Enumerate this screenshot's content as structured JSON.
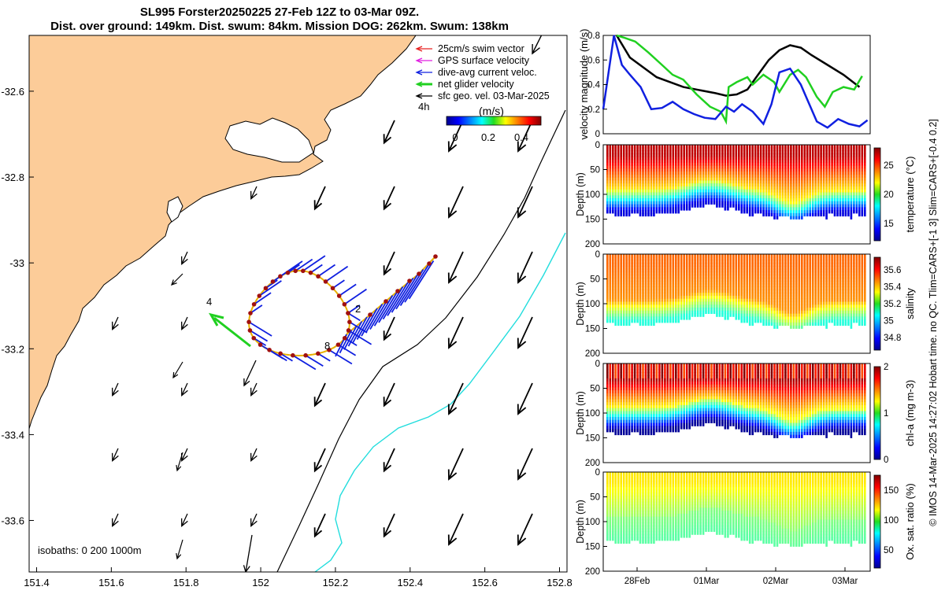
{
  "title": {
    "line1": "SL995 Forster20250225 27-Feb 12Z to 03-Mar 09Z.",
    "line2": "Dist. over ground: 149km. Dist. swum: 84km. Mission DOG: 262km. Swum: 138km"
  },
  "legend": {
    "items": [
      {
        "label": "25cm/s swim vector",
        "color": "#e82020"
      },
      {
        "label": "GPS surface velocity",
        "color": "#e020e0"
      },
      {
        "label": "dive-avg current veloc.",
        "color": "#1020e0"
      },
      {
        "label": "net glider velocity",
        "color": "#20d020"
      },
      {
        "label": "sfc geo. vel. 03-Mar-2025",
        "color": "#000000"
      }
    ],
    "time_label": "4h",
    "colorbar_unit": "(m/s)",
    "colorbar_ticks": [
      "0",
      "0.2",
      "0.4"
    ]
  },
  "isobaths_label": "isobaths: 0   200  1000m",
  "day_labels": [
    "2",
    "4",
    "8"
  ],
  "side_note": "© IMOS 14-Mar-2025 14:27:02 Hobart time. no QC. Tlim=CARS+[-1 3] Slim=CARS+[-0.4 0.2]",
  "colors": {
    "land": "#fccc99",
    "isobath_200": "#000000",
    "isobath_1000": "#20e0e0",
    "track": "#e8b000",
    "profile_marker": "#a01010"
  },
  "chart_data": [
    {
      "type": "scatter",
      "name": "map",
      "xlim": [
        151.38,
        152.82
      ],
      "ylim": [
        -33.72,
        -32.47
      ],
      "xticks": [
        "151.4",
        "151.6",
        "151.8",
        "152",
        "152.2",
        "152.4",
        "152.6",
        "152.8"
      ],
      "yticks": [
        "-32.6",
        "-32.8",
        "-33",
        "-33.2",
        "-33.4",
        "-33.6"
      ]
    },
    {
      "type": "line",
      "name": "velocity",
      "ylabel": "velocity magnitude (m/s)",
      "ylim": [
        0,
        0.8
      ],
      "yticks": [
        "0",
        "0.2",
        "0.4",
        "0.6",
        "0.8"
      ],
      "xlim": [
        0,
        1
      ],
      "series": [
        {
          "name": "black",
          "color": "#000000",
          "x": [
            0.05,
            0.1,
            0.2,
            0.3,
            0.42,
            0.46,
            0.5,
            0.54,
            0.58,
            0.62,
            0.66,
            0.7,
            0.74,
            0.78,
            0.84,
            0.9,
            0.96
          ],
          "y": [
            0.8,
            0.62,
            0.46,
            0.38,
            0.33,
            0.31,
            0.32,
            0.36,
            0.48,
            0.6,
            0.68,
            0.72,
            0.7,
            0.64,
            0.56,
            0.48,
            0.38
          ]
        },
        {
          "name": "green",
          "color": "#20d020",
          "x": [
            0.05,
            0.08,
            0.12,
            0.17,
            0.22,
            0.26,
            0.3,
            0.35,
            0.4,
            0.44,
            0.46,
            0.47,
            0.5,
            0.54,
            0.56,
            0.6,
            0.64,
            0.66,
            0.7,
            0.73,
            0.76,
            0.8,
            0.83,
            0.86,
            0.9,
            0.94,
            0.97
          ],
          "y": [
            0.8,
            0.78,
            0.75,
            0.66,
            0.56,
            0.48,
            0.44,
            0.32,
            0.22,
            0.18,
            0.1,
            0.38,
            0.42,
            0.46,
            0.4,
            0.48,
            0.42,
            0.34,
            0.48,
            0.52,
            0.46,
            0.3,
            0.22,
            0.34,
            0.38,
            0.36,
            0.47
          ]
        },
        {
          "name": "blue",
          "color": "#1020e0",
          "x": [
            0.0,
            0.04,
            0.07,
            0.1,
            0.14,
            0.18,
            0.22,
            0.26,
            0.3,
            0.34,
            0.38,
            0.42,
            0.46,
            0.49,
            0.52,
            0.56,
            0.6,
            0.63,
            0.66,
            0.7,
            0.74,
            0.77,
            0.8,
            0.84,
            0.88,
            0.92,
            0.96,
            0.99
          ],
          "y": [
            0.2,
            0.8,
            0.56,
            0.48,
            0.38,
            0.2,
            0.21,
            0.26,
            0.2,
            0.16,
            0.13,
            0.12,
            0.22,
            0.18,
            0.24,
            0.18,
            0.08,
            0.24,
            0.5,
            0.53,
            0.4,
            0.25,
            0.1,
            0.05,
            0.12,
            0.08,
            0.06,
            0.11
          ]
        }
      ]
    },
    {
      "type": "heatmap",
      "name": "temperature",
      "label": "temperature (°C)",
      "ylabel": "Depth (m)",
      "yticks": [
        "0",
        "50",
        "100",
        "150",
        "200"
      ],
      "cticks": [
        "15",
        "20",
        "25"
      ],
      "clim": [
        12,
        28
      ],
      "surface": 27,
      "thermo": 21.5,
      "deep": 13.5
    },
    {
      "type": "heatmap",
      "name": "salinity",
      "label": "salinity",
      "ylabel": "Depth (m)",
      "yticks": [
        "0",
        "50",
        "100",
        "150",
        "200"
      ],
      "cticks": [
        "34.8",
        "35",
        "35.2",
        "35.4",
        "35.6"
      ],
      "clim": [
        34.65,
        35.75
      ],
      "surface": 35.5,
      "thermo": 35.45,
      "deep": 35.1
    },
    {
      "type": "heatmap",
      "name": "chla",
      "label": "chl-a (mg m-3)",
      "ylabel": "Depth (m)",
      "yticks": [
        "0",
        "50",
        "100",
        "150",
        "200"
      ],
      "cticks": [
        "0",
        "1",
        "2"
      ],
      "clim": [
        0,
        2
      ],
      "surface": 2.0,
      "thermo": 1.1,
      "deep": 0.05
    },
    {
      "type": "heatmap",
      "name": "oxygen",
      "label": "Ox. sat. ratio (%)",
      "ylabel": "Depth (m)",
      "yticks": [
        "0",
        "50",
        "100",
        "150",
        "200"
      ],
      "cticks": [
        "50",
        "100",
        "150"
      ],
      "clim": [
        20,
        175
      ],
      "surface": 120,
      "thermo": 98,
      "deep": 92,
      "xticks": [
        "28Feb",
        "01Mar",
        "02Mar",
        "03Mar"
      ]
    }
  ]
}
